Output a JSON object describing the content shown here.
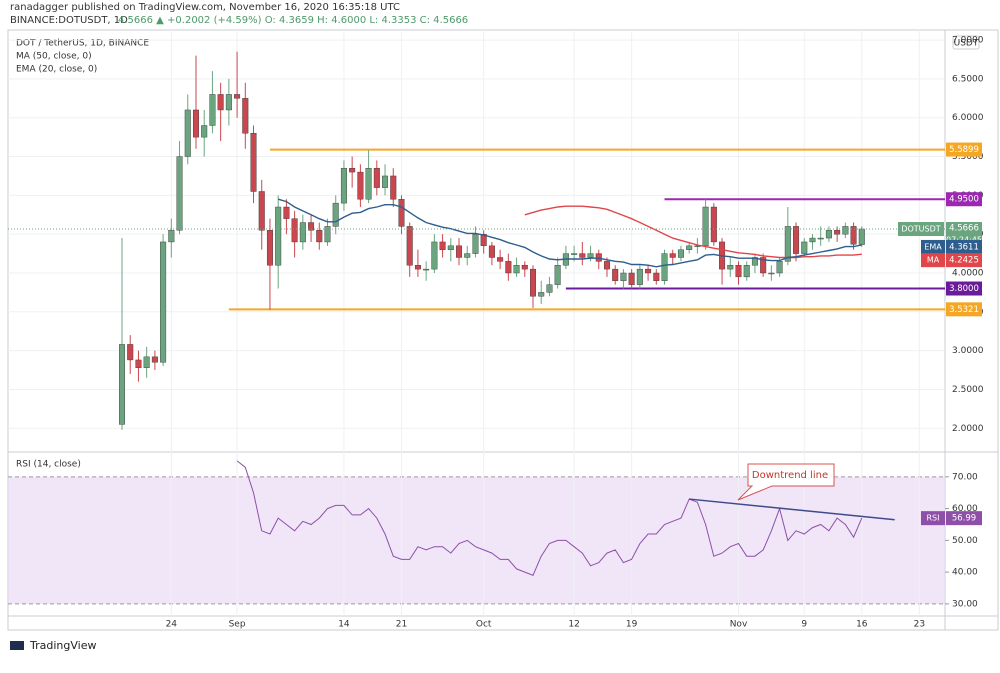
{
  "header": {
    "line1": "ranadagger published on TradingView.com, November 16, 2020 16:35:18 UTC",
    "symbol": "BINANCE:DOTUSDT, 1D",
    "quote": "4.5666 ▲ +0.2002 (+4.59%) O: 4.3659 H: 4.6000 L: 4.3353 C: 4.5666"
  },
  "footer": "TradingView",
  "chart_data": [
    {
      "type": "candlestick",
      "title": "DOT / TetherUS, 1D, BINANCE",
      "unit": "USDT",
      "symbol": "DOTUSDT",
      "countdown": "07:24:45",
      "up_color": "#6aa57f",
      "down_color": "#c9474f",
      "x": [
        "Aug 18",
        "Aug 19",
        "Aug 20",
        "Aug 21",
        "Aug 22",
        "Aug 23",
        "Aug 24",
        "Aug 25",
        "Aug 26",
        "Aug 27",
        "Aug 28",
        "Aug 29",
        "Aug 30",
        "Aug 31",
        "Sep 1",
        "Sep 2",
        "Sep 3",
        "Sep 4",
        "Sep 5",
        "Sep 6",
        "Sep 7",
        "Sep 8",
        "Sep 9",
        "Sep 10",
        "Sep 11",
        "Sep 12",
        "Sep 13",
        "Sep 14",
        "Sep 15",
        "Sep 16",
        "Sep 17",
        "Sep 18",
        "Sep 19",
        "Sep 20",
        "Sep 21",
        "Sep 22",
        "Sep 23",
        "Sep 24",
        "Sep 25",
        "Sep 26",
        "Sep 27",
        "Sep 28",
        "Sep 29",
        "Sep 30",
        "Oct 1",
        "Oct 2",
        "Oct 3",
        "Oct 4",
        "Oct 5",
        "Oct 6",
        "Oct 7",
        "Oct 8",
        "Oct 9",
        "Oct 10",
        "Oct 11",
        "Oct 12",
        "Oct 13",
        "Oct 14",
        "Oct 15",
        "Oct 16",
        "Oct 17",
        "Oct 18",
        "Oct 19",
        "Oct 20",
        "Oct 21",
        "Oct 22",
        "Oct 23",
        "Oct 24",
        "Oct 25",
        "Oct 26",
        "Oct 27",
        "Oct 28",
        "Oct 29",
        "Oct 30",
        "Oct 31",
        "Nov 1",
        "Nov 2",
        "Nov 3",
        "Nov 4",
        "Nov 5",
        "Nov 6",
        "Nov 7",
        "Nov 8",
        "Nov 9",
        "Nov 10",
        "Nov 11",
        "Nov 12",
        "Nov 13",
        "Nov 14",
        "Nov 15",
        "Nov 16"
      ],
      "open": [
        2.05,
        3.08,
        2.88,
        2.78,
        2.92,
        2.85,
        4.4,
        4.55,
        5.5,
        6.1,
        5.75,
        5.9,
        6.3,
        6.1,
        6.3,
        6.25,
        5.8,
        5.05,
        4.55,
        4.1,
        4.85,
        4.7,
        4.4,
        4.65,
        4.55,
        4.4,
        4.6,
        4.9,
        5.35,
        5.3,
        4.95,
        5.35,
        5.1,
        5.25,
        4.95,
        4.6,
        4.1,
        4.05,
        4.05,
        4.4,
        4.3,
        4.35,
        4.2,
        4.25,
        4.5,
        4.35,
        4.2,
        4.15,
        4.0,
        4.1,
        4.05,
        3.7,
        3.75,
        3.85,
        4.1,
        4.25,
        4.25,
        4.2,
        4.25,
        4.15,
        4.05,
        3.9,
        4.0,
        3.85,
        4.05,
        4.0,
        3.9,
        4.25,
        4.2,
        4.3,
        4.35,
        4.35,
        4.85,
        4.4,
        4.05,
        4.1,
        3.95,
        4.1,
        4.2,
        4.0,
        4.0,
        4.15,
        4.6,
        4.25,
        4.4,
        4.45,
        4.45,
        4.55,
        4.5,
        4.6,
        4.3659
      ],
      "high": [
        4.45,
        3.2,
        3.0,
        3.05,
        3.0,
        4.5,
        4.7,
        5.7,
        6.3,
        6.8,
        6.1,
        6.6,
        6.45,
        6.5,
        6.85,
        6.45,
        5.9,
        5.2,
        4.7,
        5.0,
        4.95,
        4.8,
        4.75,
        4.75,
        4.65,
        4.7,
        5.0,
        5.45,
        5.5,
        5.4,
        5.58,
        5.45,
        5.4,
        5.35,
        5.0,
        4.65,
        4.3,
        4.15,
        4.5,
        4.5,
        4.45,
        4.45,
        4.35,
        4.6,
        4.55,
        4.4,
        4.3,
        4.25,
        4.2,
        4.15,
        4.1,
        3.9,
        3.95,
        4.2,
        4.35,
        4.35,
        4.4,
        4.35,
        4.3,
        4.2,
        4.1,
        4.05,
        4.05,
        4.1,
        4.1,
        4.05,
        4.3,
        4.3,
        4.35,
        4.4,
        4.45,
        4.95,
        4.9,
        4.45,
        4.2,
        4.15,
        4.15,
        4.25,
        4.25,
        4.1,
        4.2,
        4.85,
        4.65,
        4.45,
        4.5,
        4.6,
        4.6,
        4.6,
        4.65,
        4.65,
        4.6
      ],
      "low": [
        1.98,
        2.7,
        2.6,
        2.65,
        2.75,
        2.8,
        4.2,
        4.5,
        5.4,
        5.6,
        5.5,
        5.8,
        5.7,
        5.9,
        6.0,
        5.6,
        4.9,
        4.3,
        3.53,
        3.8,
        4.5,
        4.2,
        4.3,
        4.4,
        4.3,
        4.35,
        4.5,
        4.8,
        5.1,
        4.85,
        4.9,
        5.0,
        5.0,
        4.85,
        4.5,
        3.95,
        3.95,
        3.9,
        4.0,
        4.2,
        4.15,
        4.1,
        4.1,
        4.2,
        4.25,
        4.1,
        4.05,
        3.9,
        3.95,
        3.95,
        3.55,
        3.6,
        3.7,
        3.8,
        4.05,
        4.15,
        4.1,
        4.15,
        4.05,
        3.95,
        3.85,
        3.8,
        3.8,
        3.8,
        3.9,
        3.85,
        3.85,
        4.1,
        4.15,
        4.25,
        4.25,
        4.3,
        4.35,
        3.85,
        3.95,
        3.85,
        3.9,
        4.0,
        3.95,
        3.9,
        3.95,
        4.1,
        4.15,
        4.2,
        4.3,
        4.35,
        4.4,
        4.4,
        4.45,
        4.3,
        4.3353
      ],
      "close": [
        3.08,
        2.88,
        2.78,
        2.92,
        2.85,
        4.4,
        4.55,
        5.5,
        6.1,
        5.75,
        5.9,
        6.3,
        6.1,
        6.3,
        6.25,
        5.8,
        5.05,
        4.55,
        4.1,
        4.85,
        4.7,
        4.4,
        4.65,
        4.55,
        4.4,
        4.6,
        4.9,
        5.35,
        5.3,
        4.95,
        5.35,
        5.1,
        5.25,
        4.95,
        4.6,
        4.1,
        4.05,
        4.05,
        4.4,
        4.3,
        4.35,
        4.2,
        4.25,
        4.5,
        4.35,
        4.2,
        4.15,
        4.0,
        4.1,
        4.05,
        3.7,
        3.75,
        3.85,
        4.1,
        4.25,
        4.25,
        4.2,
        4.25,
        4.15,
        4.05,
        3.9,
        4.0,
        3.85,
        4.05,
        4.0,
        3.9,
        4.25,
        4.2,
        4.3,
        4.35,
        4.35,
        4.85,
        4.4,
        4.05,
        4.1,
        3.95,
        4.1,
        4.2,
        4.0,
        4.0,
        4.15,
        4.6,
        4.25,
        4.4,
        4.45,
        4.45,
        4.55,
        4.5,
        4.6,
        4.37,
        4.5666
      ],
      "series": [
        {
          "name": "MA (50, close, 0)",
          "tag": "MA",
          "color": "#e0464a",
          "values": [
            null,
            null,
            null,
            null,
            null,
            null,
            null,
            null,
            null,
            null,
            null,
            null,
            null,
            null,
            null,
            null,
            null,
            null,
            null,
            null,
            null,
            null,
            null,
            null,
            null,
            null,
            null,
            null,
            null,
            null,
            null,
            null,
            null,
            null,
            null,
            null,
            null,
            null,
            null,
            null,
            null,
            null,
            null,
            null,
            null,
            null,
            null,
            null,
            null,
            4.75,
            4.78,
            4.81,
            4.83,
            4.85,
            4.86,
            4.86,
            4.86,
            4.85,
            4.84,
            4.82,
            4.78,
            4.74,
            4.7,
            4.65,
            4.6,
            4.55,
            4.5,
            4.45,
            4.42,
            4.39,
            4.36,
            4.34,
            4.32,
            4.3,
            4.28,
            4.26,
            4.25,
            4.24,
            4.22,
            4.21,
            4.2,
            4.2,
            4.2,
            4.21,
            4.21,
            4.22,
            4.22,
            4.23,
            4.23,
            4.23,
            4.2425
          ]
        },
        {
          "name": "EMA (20, close, 0)",
          "tag": "EMA",
          "color": "#2e5e8e",
          "values": [
            null,
            null,
            null,
            null,
            null,
            null,
            null,
            null,
            null,
            null,
            null,
            null,
            null,
            null,
            null,
            null,
            null,
            null,
            null,
            4.95,
            4.92,
            4.85,
            4.8,
            4.75,
            4.7,
            4.66,
            4.66,
            4.72,
            4.77,
            4.78,
            4.83,
            4.85,
            4.88,
            4.88,
            4.85,
            4.78,
            4.71,
            4.65,
            4.62,
            4.59,
            4.57,
            4.54,
            4.51,
            4.51,
            4.49,
            4.46,
            4.43,
            4.39,
            4.36,
            4.33,
            4.27,
            4.22,
            4.18,
            4.17,
            4.18,
            4.18,
            4.18,
            4.19,
            4.19,
            4.17,
            4.15,
            4.14,
            4.11,
            4.11,
            4.1,
            4.08,
            4.1,
            4.11,
            4.13,
            4.15,
            4.17,
            4.23,
            4.24,
            4.22,
            4.21,
            4.19,
            4.19,
            4.19,
            4.17,
            4.16,
            4.16,
            4.2,
            4.21,
            4.23,
            4.25,
            4.27,
            4.29,
            4.31,
            4.34,
            4.34,
            4.3611
          ]
        }
      ],
      "levels": [
        {
          "value": 5.5899,
          "color": "#f5a623",
          "start": "Sep 5"
        },
        {
          "value": 4.95,
          "label": "4.9500",
          "color": "#9c27b0",
          "start": "Oct 23"
        },
        {
          "value": 3.8,
          "label": "3.8000",
          "color": "#6a1b9a",
          "start": "Oct 11"
        },
        {
          "value": 3.5321,
          "color": "#f5a623",
          "start": "Aug 31"
        }
      ],
      "ylim": [
        1.72,
        7.13
      ],
      "yticks": [
        {
          "value": 7,
          "label": "7.0000"
        },
        {
          "value": 6.5,
          "label": "6.5000"
        },
        {
          "value": 6,
          "label": "6.0000"
        },
        {
          "value": 5.5,
          "label": "5.5000"
        },
        {
          "value": 5,
          "label": "5.0000"
        },
        {
          "value": 4.5,
          "label": "4.5000"
        },
        {
          "value": 4,
          "label": "4.0000"
        },
        {
          "value": 3.5,
          "label": "3.5000"
        },
        {
          "value": 3,
          "label": "3.0000"
        },
        {
          "value": 2.5,
          "label": "2.5000"
        },
        {
          "value": 2,
          "label": "2.0000"
        }
      ],
      "grid": true
    },
    {
      "type": "line",
      "title": "RSI (14, close)",
      "series": [
        {
          "name": "RSI (14, close)",
          "tag": "RSI",
          "color": "#8e4fa8",
          "values": [
            null,
            null,
            null,
            null,
            null,
            null,
            null,
            null,
            null,
            null,
            null,
            null,
            null,
            null,
            75,
            73,
            65,
            53,
            52,
            57,
            55,
            53,
            56,
            55,
            57,
            60,
            61,
            61,
            58,
            58,
            60,
            57,
            52,
            45,
            44,
            44,
            48,
            47,
            48,
            48,
            46,
            49,
            50,
            48,
            47,
            46,
            44,
            44,
            41,
            40,
            39,
            45,
            49,
            50,
            50,
            48,
            46,
            42,
            43,
            46,
            47,
            43,
            44,
            49,
            52,
            52,
            55,
            56,
            57,
            63,
            62,
            55,
            45,
            46,
            48,
            49,
            45,
            45,
            47,
            53,
            60,
            50,
            53,
            52,
            54,
            55,
            53,
            57,
            55,
            51,
            56.99
          ]
        }
      ],
      "band": {
        "from": 30,
        "to": 70,
        "color": "#eadcf5"
      },
      "annotation": {
        "text": "Downtrend line",
        "color": "#3f4a8a",
        "from": [
          "Oct 26",
          63
        ],
        "to": [
          "Nov 20",
          56.5
        ]
      },
      "ylim": [
        26.5,
        77.5
      ],
      "yticks": [
        {
          "value": 70,
          "label": "70.00"
        },
        {
          "value": 60,
          "label": "60.00"
        },
        {
          "value": 50,
          "label": "50.00"
        },
        {
          "value": 40,
          "label": "40.00"
        },
        {
          "value": 30,
          "label": "30.00"
        }
      ],
      "xticks": [
        {
          "value": "Aug 24",
          "label": "24"
        },
        {
          "value": "Sep 1",
          "label": "Sep"
        },
        {
          "value": "Sep 14",
          "label": "14"
        },
        {
          "value": "Sep 21",
          "label": "21"
        },
        {
          "value": "Oct 1",
          "label": "Oct"
        },
        {
          "value": "Oct 12",
          "label": "12"
        },
        {
          "value": "Oct 19",
          "label": "19"
        },
        {
          "value": "Nov 1",
          "label": "Nov"
        },
        {
          "value": "Nov 9",
          "label": "9"
        },
        {
          "value": "Nov 16",
          "label": "16"
        },
        {
          "value": "Nov 23",
          "label": "23"
        }
      ],
      "grid": true
    }
  ]
}
